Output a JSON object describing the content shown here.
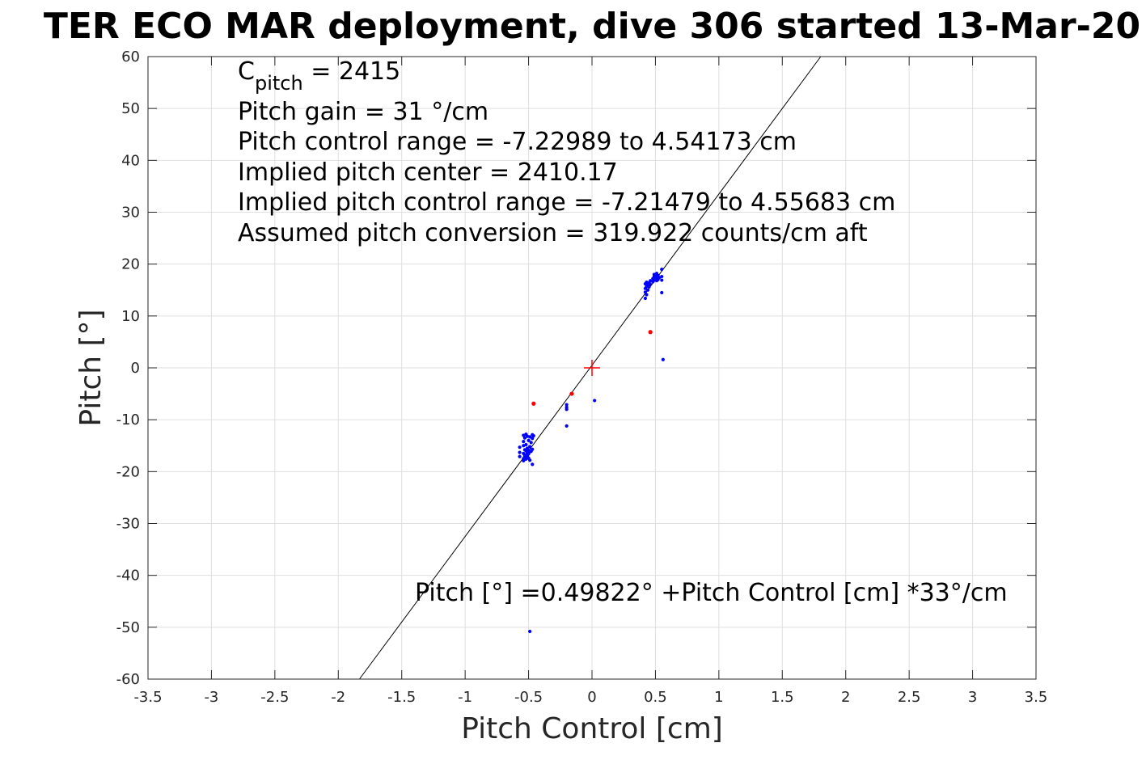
{
  "chart_data": {
    "type": "scatter",
    "title": "TER ECO MAR deployment, dive 306 started 13-Mar-20",
    "xlabel": "Pitch Control [cm]",
    "ylabel": "Pitch [°]",
    "xlim": [
      -3.5,
      3.5
    ],
    "ylim": [
      -60,
      60
    ],
    "x_ticks": [
      -3.5,
      -3,
      -2.5,
      -2,
      -1.5,
      -1,
      -0.5,
      0,
      0.5,
      1,
      1.5,
      2,
      2.5,
      3,
      3.5
    ],
    "x_tick_labels": [
      "-3.5",
      "-3",
      "-2.5",
      "-2",
      "-1.5",
      "-1",
      "-0.5",
      "0",
      "0.5",
      "1",
      "1.5",
      "2",
      "2.5",
      "3",
      "3.5"
    ],
    "y_ticks": [
      60,
      50,
      40,
      30,
      20,
      10,
      0,
      -10,
      -20,
      -30,
      -40,
      -50,
      -60
    ],
    "y_tick_labels": [
      "60",
      "50",
      "40",
      "30",
      "20",
      "10",
      "0",
      "-10",
      "-20",
      "-30",
      "-40",
      "-50",
      "-60"
    ],
    "grid": true,
    "annotations": {
      "c_pitch_prefix": "C",
      "c_pitch_sub": "pitch",
      "c_pitch_rest": " = 2415",
      "lines": [
        "Pitch gain = 31 °/cm",
        "Pitch control range = -7.22989 to 4.54173 cm",
        "Implied pitch center = 2410.17",
        "Implied pitch control range = -7.21479 to 4.55683 cm",
        "Assumed pitch conversion = 319.922 counts/cm aft"
      ],
      "fit_label": "Pitch [°] =0.49822° +Pitch Control [cm] *33°/cm"
    },
    "fit_line": {
      "intercept": 0.49822,
      "slope": 33,
      "color": "#000000"
    },
    "center_marker": {
      "x": 0,
      "y": 0,
      "color": "#ff0000"
    },
    "series": [
      {
        "color": "#0000ff",
        "points": [
          [
            -0.57,
            -15.3
          ],
          [
            -0.57,
            -16.3
          ],
          [
            -0.57,
            -17.1
          ],
          [
            -0.54,
            -13.0
          ],
          [
            -0.54,
            -14.2
          ],
          [
            -0.54,
            -15.0
          ],
          [
            -0.54,
            -16.5
          ],
          [
            -0.54,
            -17.5
          ],
          [
            -0.54,
            -17.9
          ],
          [
            -0.53,
            -13.5
          ],
          [
            -0.53,
            -15.8
          ],
          [
            -0.53,
            -16.9
          ],
          [
            -0.53,
            -17.2
          ],
          [
            -0.52,
            -12.8
          ],
          [
            -0.52,
            -14.8
          ],
          [
            -0.52,
            -16.0
          ],
          [
            -0.52,
            -16.8
          ],
          [
            -0.52,
            -17.6
          ],
          [
            -0.51,
            -13.2
          ],
          [
            -0.51,
            -15.5
          ],
          [
            -0.51,
            -16.4
          ],
          [
            -0.51,
            -17.0
          ],
          [
            -0.5,
            -14.0
          ],
          [
            -0.5,
            -15.9
          ],
          [
            -0.5,
            -16.6
          ],
          [
            -0.5,
            -17.4
          ],
          [
            -0.49,
            -13.3
          ],
          [
            -0.49,
            -15.2
          ],
          [
            -0.49,
            -16.2
          ],
          [
            -0.49,
            -17.8
          ],
          [
            -0.48,
            -14.4
          ],
          [
            -0.48,
            -16.1
          ],
          [
            -0.47,
            -12.9
          ],
          [
            -0.47,
            -13.6
          ],
          [
            -0.47,
            -15.7
          ],
          [
            -0.47,
            -18.6
          ],
          [
            -0.46,
            -13.1
          ],
          [
            -0.2,
            -7.1
          ],
          [
            -0.2,
            -7.6
          ],
          [
            -0.2,
            -8.0
          ],
          [
            -0.2,
            -11.2
          ],
          [
            0.02,
            -6.3
          ],
          [
            0.42,
            13.4
          ],
          [
            0.42,
            14.6
          ],
          [
            0.42,
            15.3
          ],
          [
            0.42,
            16.2
          ],
          [
            0.43,
            14.1
          ],
          [
            0.43,
            15.7
          ],
          [
            0.43,
            16.5
          ],
          [
            0.44,
            15.0
          ],
          [
            0.44,
            16.0
          ],
          [
            0.45,
            15.6
          ],
          [
            0.45,
            16.4
          ],
          [
            0.46,
            16.1
          ],
          [
            0.46,
            16.8
          ],
          [
            0.48,
            16.6
          ],
          [
            0.48,
            17.2
          ],
          [
            0.49,
            16.9
          ],
          [
            0.49,
            17.6
          ],
          [
            0.49,
            18.0
          ],
          [
            0.5,
            17.3
          ],
          [
            0.5,
            17.9
          ],
          [
            0.51,
            16.8
          ],
          [
            0.51,
            17.5
          ],
          [
            0.51,
            18.2
          ],
          [
            0.52,
            17.0
          ],
          [
            0.52,
            17.8
          ],
          [
            0.53,
            17.4
          ],
          [
            0.55,
            16.9
          ],
          [
            0.55,
            17.6
          ],
          [
            0.55,
            19.0
          ],
          [
            0.55,
            14.5
          ],
          [
            0.56,
            1.6
          ],
          [
            -0.49,
            -50.8
          ]
        ]
      },
      {
        "color": "#ff0000",
        "points": [
          [
            -0.46,
            -6.9
          ],
          [
            -0.16,
            -5.0
          ],
          [
            0.46,
            6.9
          ]
        ]
      }
    ]
  }
}
